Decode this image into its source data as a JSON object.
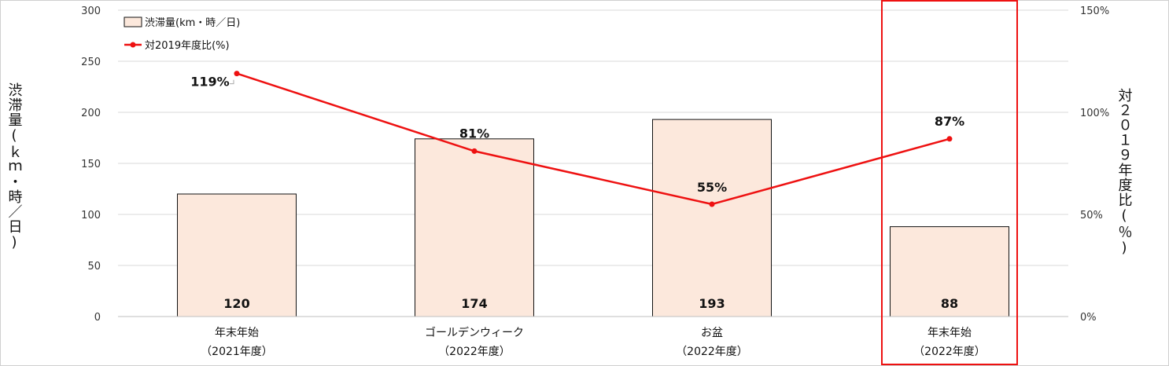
{
  "chart_data": {
    "type": "bar",
    "categories": [
      [
        "年末年始",
        "（2021年度）"
      ],
      [
        "ゴールデンウィーク",
        "（2022年度）"
      ],
      [
        "お盆",
        "（2022年度）"
      ],
      [
        "年末年始",
        "（2022年度）"
      ]
    ],
    "series": [
      {
        "name": "渋滞量(km・時／日)",
        "type": "bar",
        "axis": "left",
        "values": [
          120,
          174,
          193,
          88
        ],
        "labels": [
          "120",
          "174",
          "193",
          "88"
        ],
        "fill": "#fce8dc",
        "stroke": "#111111"
      },
      {
        "name": "対2019年度比(%)",
        "type": "line",
        "axis": "right",
        "values": [
          119,
          81,
          55,
          87
        ],
        "labels": [
          "119%",
          "81%",
          "55%",
          "87%"
        ],
        "color": "#ee1111"
      }
    ],
    "y_left": {
      "title": "渋滞量(ｋｍ・時／日)",
      "min": 0,
      "max": 300,
      "step": 50,
      "ticks": [
        "0",
        "50",
        "100",
        "150",
        "200",
        "250",
        "300"
      ]
    },
    "y_right": {
      "title": "対２０１９年度比(％)",
      "min": 0,
      "max": 150,
      "step": 50,
      "ticks": [
        "0%",
        "50%",
        "100%",
        "150%"
      ]
    },
    "grid": true,
    "legend": "top-left",
    "highlight": {
      "category_index": 3,
      "color": "#ee1111"
    }
  }
}
